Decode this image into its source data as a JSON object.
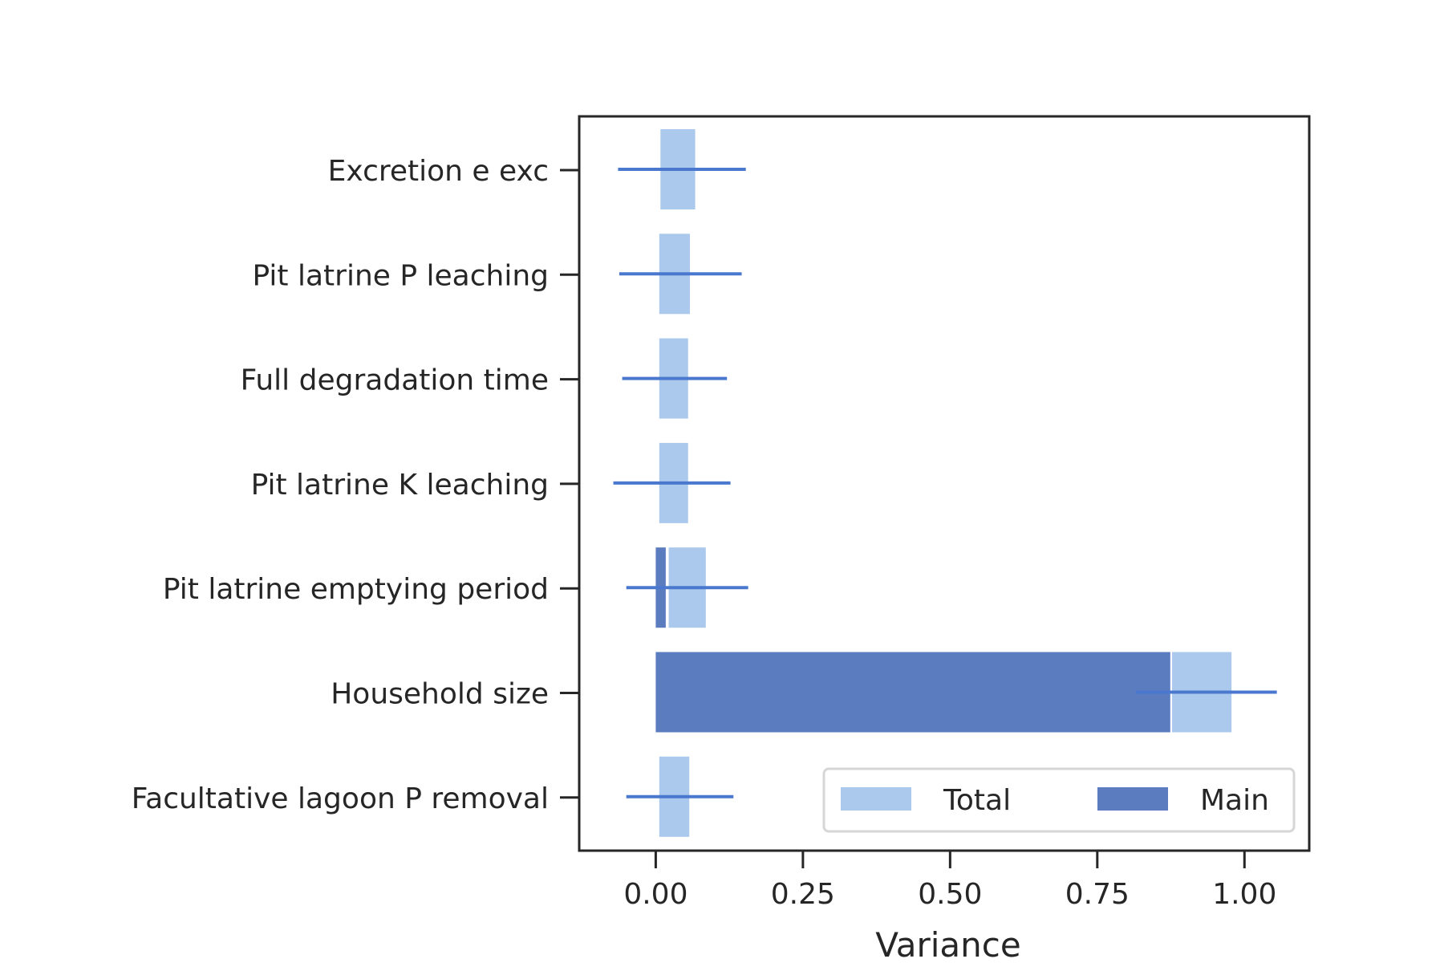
{
  "chart_data": {
    "type": "bar",
    "orientation": "horizontal",
    "xlabel": "Variance",
    "ylabel": "",
    "xlim": [
      -0.13,
      1.11
    ],
    "xticks": [
      0.0,
      0.25,
      0.5,
      0.75,
      1.0
    ],
    "xtick_labels": [
      "0.00",
      "0.25",
      "0.50",
      "0.75",
      "1.00"
    ],
    "grid": false,
    "legend_position": "lower-right",
    "categories": [
      "Excretion e exc",
      "Pit latrine P leaching",
      "Full degradation time",
      "Pit latrine K leaching",
      "Pit latrine emptying period",
      "Household size",
      "Facultative lagoon P removal"
    ],
    "series": [
      {
        "name": "Total",
        "color": "#abc9ec",
        "start": [
          0.008,
          0.006,
          0.006,
          0.006,
          0.022,
          0.877,
          0.006
        ],
        "values": [
          0.067,
          0.058,
          0.055,
          0.055,
          0.085,
          0.978,
          0.057
        ]
      },
      {
        "name": "Main",
        "color": "#5b7dc0",
        "start": [
          0,
          0,
          0,
          0,
          0,
          0,
          0
        ],
        "values": [
          0,
          0,
          0,
          0,
          0.017,
          0.874,
          0
        ]
      }
    ],
    "error_bars": {
      "color": "#4a78cf",
      "center": [
        0.044,
        0.042,
        0.038,
        0.034,
        0.054,
        0.94,
        0.04
      ],
      "low": [
        -0.064,
        -0.062,
        -0.057,
        -0.072,
        -0.05,
        0.815,
        -0.05
      ],
      "high": [
        0.153,
        0.146,
        0.121,
        0.127,
        0.157,
        1.055,
        0.132
      ]
    }
  }
}
